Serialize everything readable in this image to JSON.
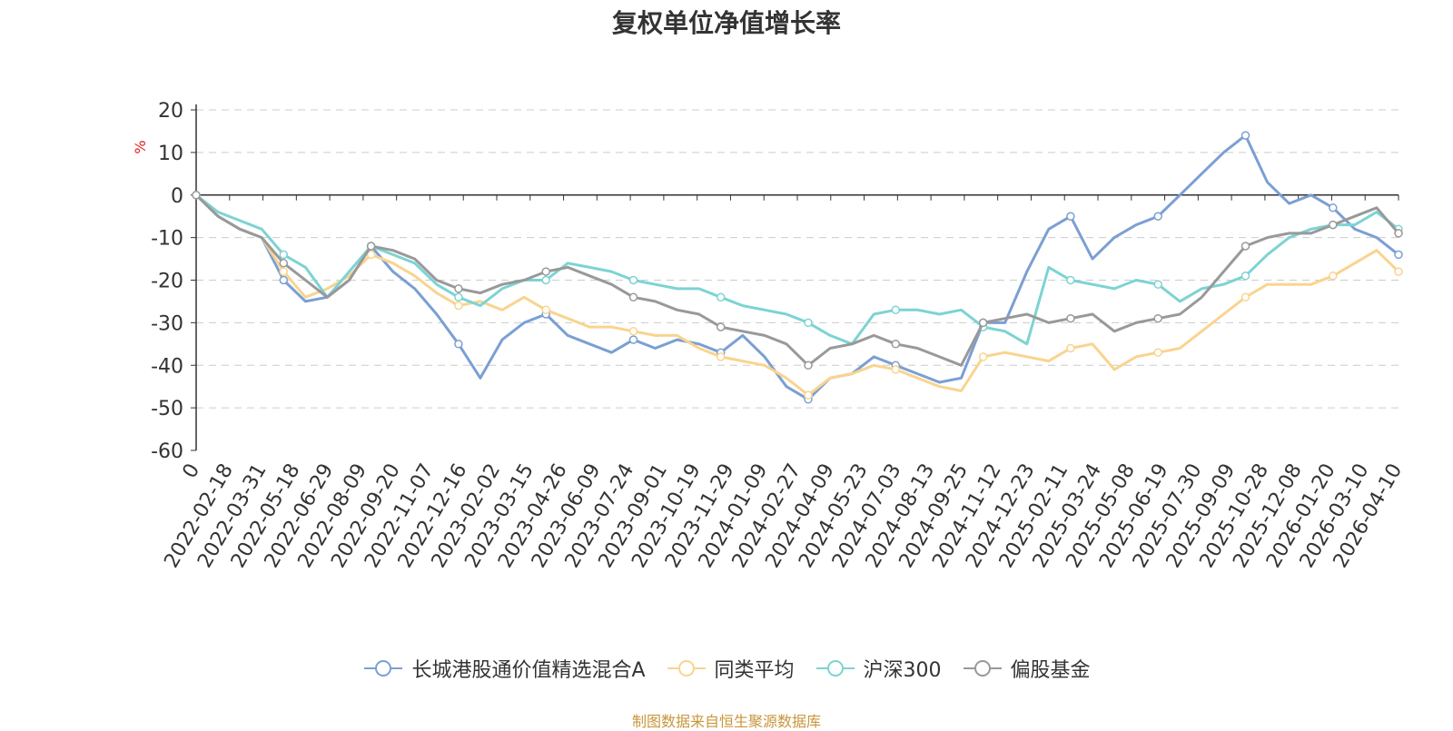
{
  "chart_data": {
    "type": "line",
    "title": "复权单位净值增长率",
    "ylabel": "%",
    "ylim": [
      -60,
      20
    ],
    "yticks": [
      20,
      10,
      0,
      -10,
      -20,
      -30,
      -40,
      -50,
      -60
    ],
    "xlabels": [
      "0",
      "2022-02-18",
      "2022-03-31",
      "2022-05-18",
      "2022-06-29",
      "2022-08-09",
      "2022-09-20",
      "2022-11-07",
      "2022-12-16",
      "2023-02-02",
      "2023-03-15",
      "2023-04-26",
      "2023-06-09",
      "2023-07-24",
      "2023-09-01",
      "2023-10-19",
      "2023-11-29",
      "2024-01-09",
      "2024-02-27",
      "2024-04-09",
      "2024-05-23",
      "2024-07-03",
      "2024-08-13",
      "2024-09-25",
      "2024-11-12",
      "2024-12-23",
      "2025-02-11",
      "2025-03-24",
      "2025-05-08",
      "2025-06-19",
      "2025-07-30",
      "2025-09-09",
      "2025-10-28",
      "2025-12-08",
      "2026-01-20",
      "2026-03-10",
      "2026-04-10"
    ],
    "series": [
      {
        "name": "长城港股通价值精选混合A",
        "color": "#7b9fd3",
        "values": [
          0,
          -5,
          -8,
          -10,
          -20,
          -25,
          -24,
          -20,
          -12,
          -18,
          -22,
          -28,
          -35,
          -43,
          -34,
          -30,
          -28,
          -33,
          -35,
          -37,
          -34,
          -36,
          -34,
          -35,
          -37,
          -33,
          -38,
          -45,
          -48,
          -43,
          -42,
          -38,
          -40,
          -42,
          -44,
          -43,
          -30,
          -30,
          -18,
          -8,
          -5,
          -15,
          -10,
          -7,
          -5,
          0,
          5,
          10,
          14,
          3,
          -2,
          0,
          -3,
          -8,
          -10,
          -14
        ]
      },
      {
        "name": "同类平均",
        "color": "#f9d48f",
        "values": [
          0,
          -5,
          -8,
          -10,
          -18,
          -24,
          -22,
          -19,
          -14,
          -16,
          -19,
          -23,
          -26,
          -25,
          -27,
          -24,
          -27,
          -29,
          -31,
          -31,
          -32,
          -33,
          -33,
          -36,
          -38,
          -39,
          -40,
          -43,
          -47,
          -43,
          -42,
          -40,
          -41,
          -43,
          -45,
          -46,
          -38,
          -37,
          -38,
          -39,
          -36,
          -35,
          -41,
          -38,
          -37,
          -36,
          -32,
          -28,
          -24,
          -21,
          -21,
          -21,
          -19,
          -16,
          -13,
          -18
        ]
      },
      {
        "name": "沪深300",
        "color": "#7dd3d3",
        "values": [
          0,
          -4,
          -6,
          -8,
          -14,
          -17,
          -24,
          -18,
          -12,
          -14,
          -16,
          -21,
          -24,
          -26,
          -22,
          -20,
          -20,
          -16,
          -17,
          -18,
          -20,
          -21,
          -22,
          -22,
          -24,
          -26,
          -27,
          -28,
          -30,
          -33,
          -35,
          -28,
          -27,
          -27,
          -28,
          -27,
          -31,
          -32,
          -35,
          -17,
          -20,
          -21,
          -22,
          -20,
          -21,
          -25,
          -22,
          -21,
          -19,
          -14,
          -10,
          -8,
          -7,
          -7,
          -4,
          -8
        ]
      },
      {
        "name": "偏股基金",
        "color": "#999999",
        "values": [
          0,
          -5,
          -8,
          -10,
          -16,
          -20,
          -24,
          -20,
          -12,
          -13,
          -15,
          -20,
          -22,
          -23,
          -21,
          -20,
          -18,
          -17,
          -19,
          -21,
          -24,
          -25,
          -27,
          -28,
          -31,
          -32,
          -33,
          -35,
          -40,
          -36,
          -35,
          -33,
          -35,
          -36,
          -38,
          -40,
          -30,
          -29,
          -28,
          -30,
          -29,
          -28,
          -32,
          -30,
          -29,
          -28,
          -24,
          -18,
          -12,
          -10,
          -9,
          -9,
          -7,
          -5,
          -3,
          -9
        ]
      }
    ]
  },
  "legend": {
    "items": [
      "长城港股通价值精选混合A",
      "同类平均",
      "沪深300",
      "偏股基金"
    ]
  },
  "source_text": "制图数据来自恒生聚源数据库"
}
